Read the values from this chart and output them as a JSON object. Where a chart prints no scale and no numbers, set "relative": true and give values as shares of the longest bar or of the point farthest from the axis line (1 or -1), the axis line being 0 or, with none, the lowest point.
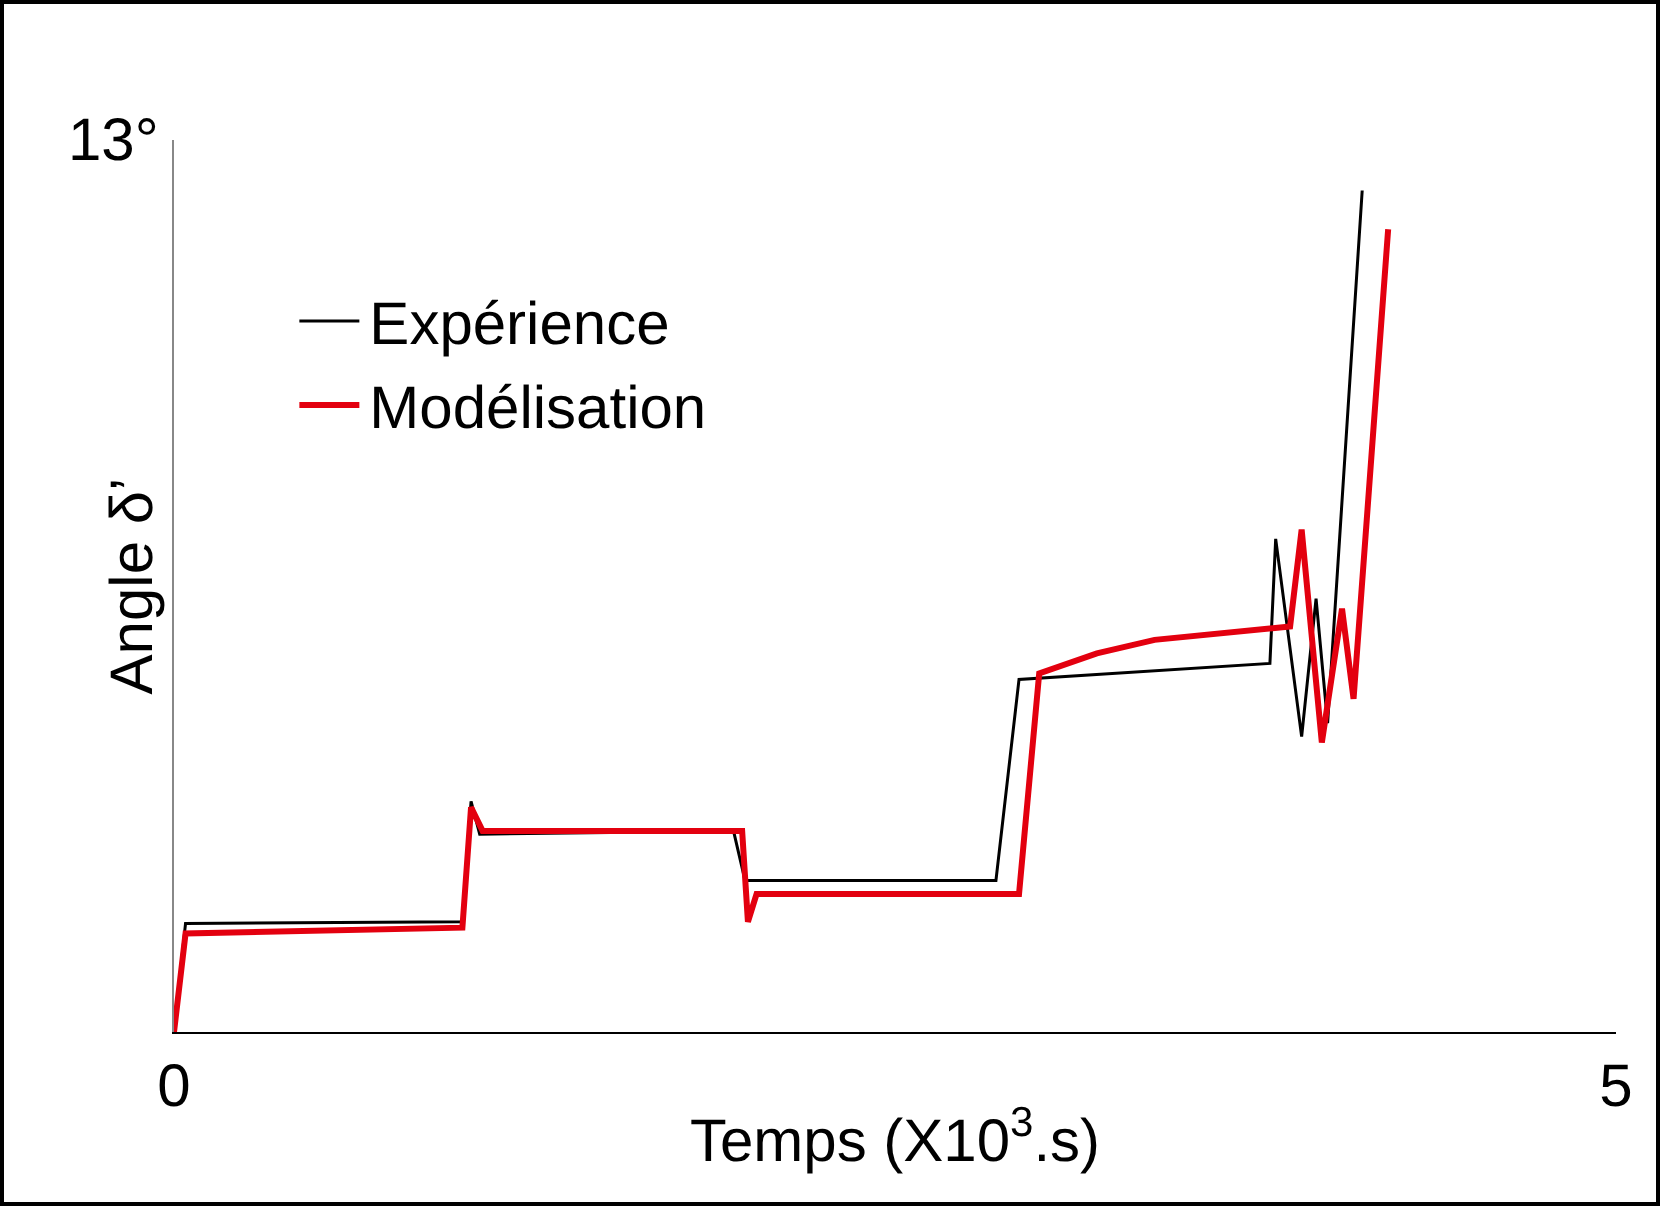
{
  "chart_data": {
    "type": "line",
    "xlabel": "Temps (X10$^{3}$.s)",
    "ylabel": "Angle δ’",
    "relative": true,
    "xlim": [
      0,
      5
    ],
    "xticks": [
      0,
      5
    ],
    "annotations": [
      "13°"
    ],
    "legend": "left",
    "marker": "none",
    "line_style": "solid",
    "series": [
      {
        "name": "Expérience",
        "color": "#000000",
        "x": [
          0,
          0.04,
          1.0,
          1.03,
          1.06,
          1.94,
          1.98,
          2.85,
          2.93,
          3.8,
          3.82,
          3.91,
          3.96,
          4.0,
          4.12
        ],
        "values": [
          0,
          0.129,
          0.131,
          0.274,
          0.235,
          0.239,
          0.18,
          0.18,
          0.419,
          0.438,
          0.586,
          0.351,
          0.515,
          0.367,
          1
        ]
      },
      {
        "name": "Modélisation",
        "color": "#e3000f",
        "x": [
          0,
          0.04,
          1.0,
          1.03,
          1.07,
          1.97,
          1.99,
          2.02,
          2.93,
          3.0,
          3.2,
          3.4,
          3.87,
          3.91,
          3.98,
          4.05,
          4.09,
          4.21
        ],
        "values": [
          0,
          0.117,
          0.124,
          0.267,
          0.239,
          0.239,
          0.131,
          0.164,
          0.164,
          0.426,
          0.45,
          0.466,
          0.482,
          0.597,
          0.344,
          0.503,
          0.396,
          0.954
        ]
      }
    ]
  }
}
